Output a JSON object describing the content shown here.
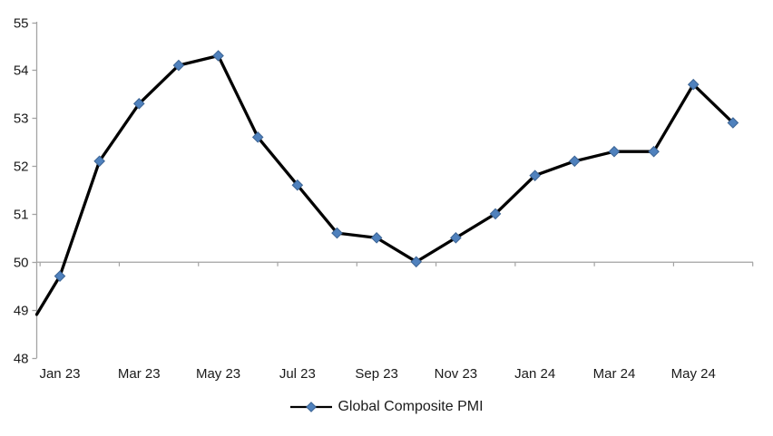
{
  "chart_data": {
    "type": "line",
    "title": "",
    "categories": [
      "Jan 23",
      "Feb 23",
      "Mar 23",
      "Apr 23",
      "May 23",
      "Jun 23",
      "Jul 23",
      "Aug 23",
      "Sep 23",
      "Oct 23",
      "Nov 23",
      "Dec 23",
      "Jan 24",
      "Feb 24",
      "Mar 24",
      "Apr 24",
      "May 24",
      "Jun 24"
    ],
    "series": [
      {
        "name": "Global Composite PMI",
        "values": [
          49.7,
          52.1,
          53.3,
          54.1,
          54.3,
          52.6,
          51.6,
          50.6,
          50.5,
          50.0,
          50.5,
          51.0,
          51.8,
          52.1,
          52.3,
          52.3,
          53.7,
          52.9
        ],
        "line_color": "#000000",
        "marker": "diamond",
        "marker_color": "#4F81BD",
        "marker_edge_color": "#3C6494"
      }
    ],
    "line_enters_left_axis_at": 48.9,
    "ylim": [
      48,
      55
    ],
    "y_axis": {
      "ticks": [
        48,
        49,
        50,
        51,
        52,
        53,
        54,
        55
      ],
      "color": "#A3A3A3"
    },
    "x_axis": {
      "labels": [
        "Jan 23",
        "Mar 23",
        "May 23",
        "Jul 23",
        "Sep 23",
        "Nov 23",
        "Jan 24",
        "Mar 24",
        "May 24"
      ],
      "label_every_n_months": 2,
      "axis_crosses_at_value": 50,
      "color": "#A3A3A3"
    },
    "grid": "single horizontal axis line at value 50 with downward category ticks every 2 months",
    "legend": {
      "position": "bottom-center",
      "label": "Global Composite PMI"
    }
  }
}
